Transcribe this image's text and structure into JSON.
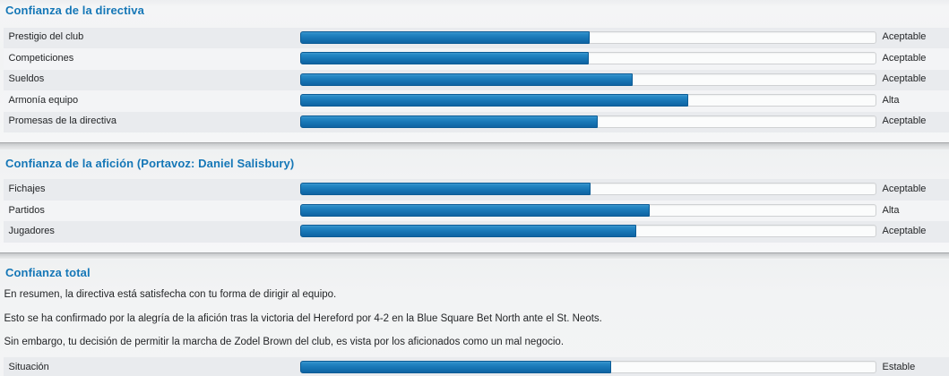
{
  "colors": {
    "accent_blue": "#1577b7",
    "bar_fill_blue": "#1b7ab9",
    "bar_track_white": "#ffffff",
    "row_shade": "#e9ebee"
  },
  "sections": [
    {
      "title": "Confianza de la directiva",
      "rows": [
        {
          "label": "Prestigio del club",
          "rating": "Aceptable",
          "value": 0.502
        },
        {
          "label": "Competiciones",
          "rating": "Aceptable",
          "value": 0.501
        },
        {
          "label": "Sueldos",
          "rating": "Aceptable",
          "value": 0.578
        },
        {
          "label": "Armonía equipo",
          "rating": "Alta",
          "value": 0.674
        },
        {
          "label": "Promesas de la directiva",
          "rating": "Aceptable",
          "value": 0.517
        }
      ]
    },
    {
      "title": "Confianza de la afición (Portavoz: Daniel Salisbury)",
      "rows": [
        {
          "label": "Fichajes",
          "rating": "Aceptable",
          "value": 0.504
        },
        {
          "label": "Partidos",
          "rating": "Alta",
          "value": 0.607
        },
        {
          "label": "Jugadores",
          "rating": "Aceptable",
          "value": 0.583
        }
      ]
    },
    {
      "title": "Confianza total",
      "paragraphs": [
        "En resumen, la directiva está satisfecha con tu forma de dirigir al equipo.",
        "Esto se ha confirmado por la alegría de la afición tras la victoria del Hereford por 4-2 en la Blue Square Bet North ante el St. Neots.",
        "Sin embargo, tu decisión de permitir la marcha de Zodel Brown del club, es vista por los aficionados como un mal negocio."
      ],
      "rows": [
        {
          "label": "Situación",
          "rating": "Estable",
          "value": 0.54
        }
      ]
    }
  ]
}
